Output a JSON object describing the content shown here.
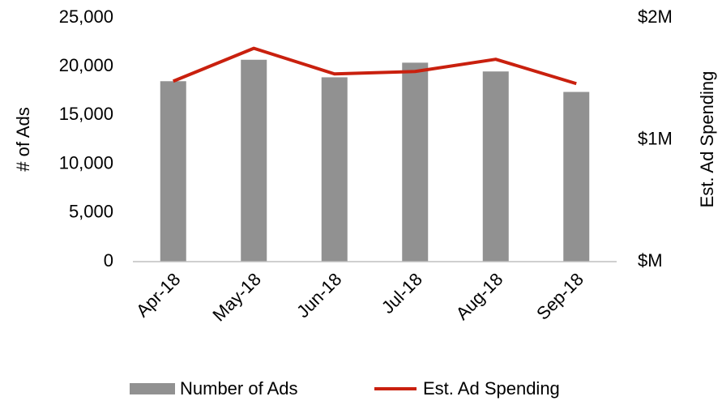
{
  "chart_data": {
    "type": "bar_line",
    "categories": [
      "Apr-18",
      "May-18",
      "Jun-18",
      "Jul-18",
      "Aug-18",
      "Sep-18"
    ],
    "series": [
      {
        "name": "Number of Ads",
        "type": "bar",
        "color": "#919191",
        "values": [
          18500,
          20700,
          18900,
          20400,
          19500,
          17400
        ]
      },
      {
        "name": "Est. Ad Spending",
        "type": "line",
        "axis": "y2",
        "color": "#c9200e",
        "values": [
          1480000,
          1750000,
          1540000,
          1560000,
          1660000,
          1460000
        ]
      }
    ],
    "ylabel": "# of Ads",
    "y2label": "Est. Ad Spending",
    "ylim": [
      0,
      25000
    ],
    "yticks": [
      0,
      {
        "value": 5000,
        "label": "5,000"
      },
      {
        "value": 10000,
        "label": "10,000"
      },
      {
        "value": 15000,
        "label": "15,000"
      },
      {
        "value": 20000,
        "label": "20,000"
      },
      {
        "value": 25000,
        "label": "25,000"
      }
    ],
    "y2lim": [
      0,
      2000000
    ],
    "y2ticks": [
      {
        "value": 0,
        "label": "$M"
      },
      {
        "value": 1000000,
        "label": "$1M"
      },
      {
        "value": 2000000,
        "label": "$2M"
      }
    ],
    "grid": false,
    "legend": "bottom"
  }
}
